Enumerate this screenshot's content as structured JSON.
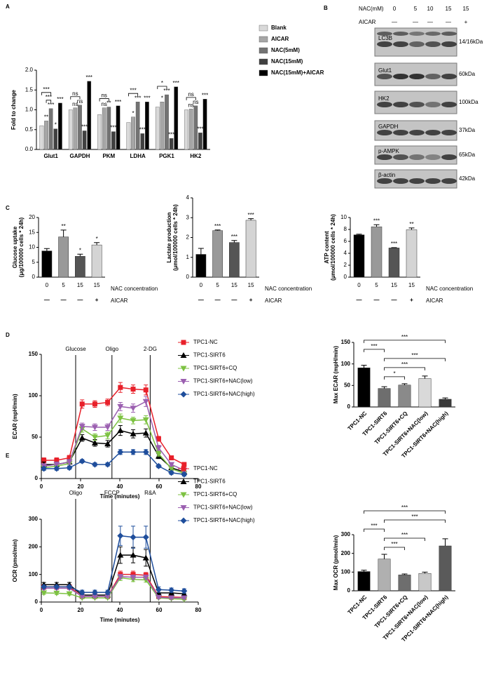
{
  "blot": {
    "panel": "B",
    "header": [
      {
        "label": "NAC(mM)",
        "values": [
          "0",
          "5",
          "10",
          "15",
          "15"
        ]
      },
      {
        "label": "AICAR",
        "values": [
          "—",
          "—",
          "—",
          "—",
          "+"
        ]
      }
    ],
    "bands": [
      {
        "protein": "LC3B",
        "size": "14/16kDa"
      },
      {
        "protein": "Glut1",
        "size": "60kDa"
      },
      {
        "protein": "HK2",
        "size": "100kDa"
      },
      {
        "protein": "GAPDH",
        "size": "37kDa"
      },
      {
        "protein": "p-AMPK",
        "size": "65kDa"
      },
      {
        "protein": "β-actin",
        "size": "42kDa"
      }
    ]
  },
  "chart_data": [
    {
      "type": "bar",
      "panel": "A",
      "ylabel": "Fold to change",
      "categories": [
        "Glut1",
        "GAPDH",
        "PKM",
        "LDHA",
        "PGK1",
        "HK2"
      ],
      "series": [
        {
          "name": "Blank",
          "color": "#d9d9d9",
          "values": [
            0.6,
            1.0,
            0.88,
            0.68,
            1.07,
            1.0
          ],
          "significance": [
            null,
            null,
            null,
            null,
            null,
            null
          ]
        },
        {
          "name": "AICAR",
          "color": "#a6a6a6",
          "values": [
            0.72,
            1.05,
            1.05,
            0.82,
            1.2,
            1.02
          ],
          "significance": [
            "**",
            "ns",
            "ns",
            "*",
            "*",
            "ns"
          ]
        },
        {
          "name": "NAC(5mM)",
          "color": "#737373",
          "values": [
            1.03,
            1.12,
            1.07,
            1.2,
            1.38,
            1.1
          ],
          "significance": [
            "***",
            "ns",
            "**",
            "***",
            "***",
            "ns"
          ]
        },
        {
          "name": "NAC(15mM)",
          "color": "#404040",
          "values": [
            0.52,
            0.47,
            0.45,
            0.4,
            0.28,
            0.42
          ],
          "significance": [
            "*",
            "***",
            "***",
            "***",
            "***",
            "***"
          ]
        },
        {
          "name": "NAC(15mM)+AICAR",
          "color": "#000000",
          "values": [
            1.17,
            1.72,
            1.1,
            1.2,
            1.58,
            1.27
          ],
          "significance": [
            "***",
            "***",
            "***",
            "***",
            "***",
            "***"
          ]
        }
      ],
      "brackets": [
        {
          "category": "Glut1",
          "between": [
            "AICAR",
            "NAC(5mM)"
          ],
          "label": "***"
        },
        {
          "category": "Glut1",
          "between": [
            "Blank",
            "NAC(5mM)"
          ],
          "label": "***"
        },
        {
          "category": "GAPDH",
          "between": [
            "Blank",
            "NAC(5mM)"
          ],
          "label": "ns"
        },
        {
          "category": "PKM",
          "between": [
            "Blank",
            "NAC(5mM)"
          ],
          "label": "ns"
        },
        {
          "category": "LDHA",
          "between": [
            "Blank",
            "NAC(5mM)"
          ],
          "label": "***"
        },
        {
          "category": "PGK1",
          "between": [
            "Blank",
            "NAC(5mM)"
          ],
          "label": "*"
        },
        {
          "category": "HK2",
          "between": [
            "Blank",
            "NAC(5mM)"
          ],
          "label": "ns"
        }
      ],
      "ylim": [
        0,
        2
      ],
      "yticks": [
        {
          "value": 0,
          "label": "0.0"
        },
        0.5,
        {
          "value": 1,
          "label": "1.0"
        },
        1.5,
        {
          "value": 2,
          "label": "2.0"
        }
      ]
    },
    {
      "type": "bar",
      "panel": "C",
      "ylabel": [
        "Glucose uptake",
        "(μg/100000 cells * 24h)"
      ],
      "category_label": "NAC concentration",
      "group_label": "AICAR",
      "categories": [
        "0",
        "5",
        "15",
        "15"
      ],
      "groups": [
        "—",
        "—",
        "—",
        "+"
      ],
      "values": [
        8.8,
        13.5,
        7,
        10.8
      ],
      "errors": [
        0.8,
        2.3,
        0.7,
        0.8
      ],
      "significance": [
        null,
        "**",
        "*",
        "*"
      ],
      "colors": [
        "#000000",
        "#999999",
        "#555555",
        "#d4d4d4"
      ],
      "ylim": [
        0,
        20
      ],
      "yticks": [
        0,
        5,
        10,
        15,
        20
      ]
    },
    {
      "type": "bar",
      "ylabel": [
        "Lactate production",
        "(μmol/100000 cells * 24h)"
      ],
      "category_label": "NAC concentration",
      "group_label": "AICAR",
      "categories": [
        "0",
        "5",
        "15",
        "15"
      ],
      "groups": [
        "—",
        "—",
        "—",
        "+"
      ],
      "values": [
        1.15,
        2.35,
        1.75,
        2.87
      ],
      "errors": [
        0.3,
        0.03,
        0.1,
        0.08
      ],
      "significance": [
        null,
        "***",
        "***",
        "***"
      ],
      "colors": [
        "#000000",
        "#999999",
        "#555555",
        "#d4d4d4"
      ],
      "ylim": [
        0,
        4
      ],
      "yticks": [
        0,
        1,
        2,
        3,
        4
      ]
    },
    {
      "type": "bar",
      "ylabel": [
        "ATP content",
        "(μmol/100000 cells * 24h)"
      ],
      "category_label": "NAC concentration",
      "group_label": "AICAR",
      "categories": [
        "0",
        "5",
        "15",
        "15"
      ],
      "groups": [
        "—",
        "—",
        "—",
        "+"
      ],
      "values": [
        7.1,
        8.45,
        4.9,
        7.95
      ],
      "errors": [
        0.1,
        0.35,
        0.05,
        0.3
      ],
      "significance": [
        null,
        "***",
        "***",
        "**"
      ],
      "colors": [
        "#000000",
        "#999999",
        "#555555",
        "#d4d4d4"
      ],
      "ylim": [
        0,
        10
      ],
      "yticks": [
        0,
        2,
        4,
        6,
        8,
        10
      ]
    },
    {
      "type": "line",
      "panel": "D",
      "ylabel": "ECAR (mpH/min)",
      "xlabel": "Time (minutes)",
      "x": [
        1.3,
        7.8,
        14.3,
        20.8,
        27.3,
        33.8,
        40.3,
        46.8,
        53.3,
        59.8,
        66.3,
        72.8
      ],
      "events": [
        {
          "x": 17.5,
          "label": "Glucose"
        },
        {
          "x": 36,
          "label": "Oligo"
        },
        {
          "x": 55.5,
          "label": "2-DG"
        }
      ],
      "series": [
        {
          "name": "TPC1-NC",
          "color": "#e8202a",
          "marker": "square",
          "values": [
            22,
            22,
            25,
            90,
            90,
            92,
            110,
            108,
            107,
            48,
            25,
            17
          ],
          "errors": [
            3,
            3,
            3,
            5,
            4,
            4,
            6,
            5,
            6,
            3,
            2,
            2
          ]
        },
        {
          "name": "TPC1-SIRT6",
          "color": "#000000",
          "marker": "triangle",
          "values": [
            17,
            17,
            20,
            49,
            43,
            42,
            58,
            54,
            55,
            27,
            13,
            8
          ],
          "errors": [
            3,
            3,
            3,
            4,
            4,
            4,
            6,
            5,
            5,
            3,
            2,
            2
          ]
        },
        {
          "name": "TPC1-SIRT6+CQ",
          "color": "#7dc242",
          "marker": "triangle-down",
          "values": [
            13,
            15,
            18,
            60,
            50,
            52,
            73,
            70,
            71,
            30,
            12,
            6
          ],
          "errors": [
            3,
            3,
            3,
            4,
            4,
            4,
            5,
            4,
            5,
            3,
            2,
            2
          ]
        },
        {
          "name": "TPC1-SIRT6+NAC(low)",
          "color": "#9b5fb0",
          "marker": "triangle-down",
          "values": [
            15,
            17,
            20,
            63,
            62,
            62,
            87,
            85,
            93,
            37,
            17,
            10
          ],
          "errors": [
            3,
            3,
            3,
            4,
            4,
            4,
            5,
            5,
            6,
            3,
            2,
            2
          ]
        },
        {
          "name": "TPC1-SIRT6+NAC(high)",
          "color": "#1f4e9c",
          "marker": "diamond",
          "values": [
            12,
            12,
            13,
            21,
            17,
            17,
            32,
            32,
            32,
            15,
            7,
            5
          ],
          "errors": [
            2,
            2,
            2,
            2,
            2,
            2,
            3,
            3,
            3,
            2,
            2,
            2
          ]
        }
      ],
      "xlim": [
        0,
        80
      ],
      "xticks": [
        0,
        20,
        40,
        60,
        80
      ],
      "ylim": [
        0,
        150
      ],
      "yticks": [
        0,
        50,
        100,
        150
      ]
    },
    {
      "type": "bar",
      "ylabel": "Max ECAR (mpH/min)",
      "categories": [
        "TPC1-NC",
        "TPC1-SIRT6",
        "TPC1-SIRT6+CQ",
        "TPC1-SIRT6+NAC(low)",
        "TPC1-SIRT6+NAC(high)"
      ],
      "values": [
        91,
        43,
        51,
        66,
        18
      ],
      "errors": [
        6,
        4,
        3,
        6,
        3
      ],
      "colors": [
        "#000000",
        "#6e6e6e",
        "#8a8a8a",
        "#d9d9d9",
        "#3a3a3a"
      ],
      "brackets": [
        {
          "between": [
            "TPC1-SIRT6",
            "TPC1-SIRT6+CQ"
          ],
          "label": "*"
        },
        {
          "between": [
            "TPC1-SIRT6",
            "TPC1-SIRT6+NAC(low)"
          ],
          "label": "***"
        },
        {
          "between": [
            "TPC1-SIRT6",
            "TPC1-SIRT6+NAC(high)"
          ],
          "label": "***"
        },
        {
          "between": [
            "TPC1-NC",
            "TPC1-SIRT6"
          ],
          "label": "***"
        },
        {
          "between": [
            "TPC1-NC",
            "TPC1-SIRT6+NAC(high)"
          ],
          "label": "***"
        }
      ],
      "ylim": [
        0,
        150
      ],
      "yticks": [
        0,
        50,
        100,
        150
      ]
    },
    {
      "type": "line",
      "panel": "E",
      "ylabel": "OCR (pmol/min)",
      "xlabel": "Time (minutes)",
      "x": [
        1.3,
        7.8,
        14.3,
        20.8,
        27.3,
        33.8,
        40.3,
        46.8,
        53.3,
        59.8,
        66.3,
        72.8
      ],
      "events": [
        {
          "x": 17.5,
          "label": "Oligo"
        },
        {
          "x": 36,
          "label": "FCCP"
        },
        {
          "x": 55.5,
          "label": "R&A"
        }
      ],
      "series": [
        {
          "name": "TPC1-NC",
          "color": "#e8202a",
          "marker": "square",
          "values": [
            55,
            55,
            55,
            20,
            20,
            20,
            100,
            100,
            97,
            20,
            18,
            17
          ],
          "errors": [
            5,
            5,
            5,
            3,
            3,
            3,
            12,
            12,
            10,
            3,
            3,
            3
          ]
        },
        {
          "name": "TPC1-SIRT6",
          "color": "#000000",
          "marker": "triangle",
          "values": [
            63,
            63,
            63,
            25,
            25,
            25,
            170,
            170,
            160,
            33,
            33,
            30
          ],
          "errors": [
            8,
            8,
            8,
            5,
            5,
            5,
            30,
            28,
            30,
            8,
            8,
            8
          ]
        },
        {
          "name": "TPC1-SIRT6+CQ",
          "color": "#7dc242",
          "marker": "triangle-down",
          "values": [
            33,
            32,
            30,
            15,
            15,
            15,
            88,
            82,
            80,
            15,
            12,
            10
          ],
          "errors": [
            5,
            5,
            5,
            3,
            3,
            3,
            10,
            8,
            8,
            3,
            3,
            3
          ]
        },
        {
          "name": "TPC1-SIRT6+NAC(low)",
          "color": "#9b5fb0",
          "marker": "triangle-down",
          "values": [
            50,
            50,
            50,
            20,
            20,
            20,
            92,
            90,
            90,
            17,
            15,
            15
          ],
          "errors": [
            5,
            5,
            5,
            3,
            3,
            3,
            8,
            8,
            8,
            3,
            3,
            3
          ]
        },
        {
          "name": "TPC1-SIRT6+NAC(high)",
          "color": "#1f4e9c",
          "marker": "diamond",
          "values": [
            55,
            55,
            55,
            35,
            35,
            35,
            240,
            235,
            235,
            45,
            43,
            40
          ],
          "errors": [
            5,
            5,
            5,
            8,
            8,
            8,
            35,
            40,
            40,
            10,
            8,
            8
          ]
        }
      ],
      "xlim": [
        0,
        80
      ],
      "xticks": [
        0,
        20,
        40,
        60,
        80
      ],
      "ylim": [
        0,
        300
      ],
      "yticks": [
        0,
        100,
        200,
        300
      ]
    },
    {
      "type": "bar",
      "ylabel": "Max OCR (pmol/min)",
      "categories": [
        "TPC1-NC",
        "TPC1-SIRT6",
        "TPC1-SIRT6+CQ",
        "TPC1-SIRT6+NAC(low)",
        "TPC1-SIRT6+NAC(high)"
      ],
      "values": [
        103,
        170,
        85,
        93,
        240
      ],
      "errors": [
        7,
        25,
        5,
        7,
        38
      ],
      "colors": [
        "#000000",
        "#b0b0b0",
        "#6e6e6e",
        "#c8c8c8",
        "#5a5a5a"
      ],
      "brackets": [
        {
          "between": [
            "TPC1-SIRT6",
            "TPC1-SIRT6+CQ"
          ],
          "label": "***"
        },
        {
          "between": [
            "TPC1-SIRT6",
            "TPC1-SIRT6+NAC(low)"
          ],
          "label": "***"
        },
        {
          "between": [
            "TPC1-NC",
            "TPC1-SIRT6"
          ],
          "label": "***"
        },
        {
          "between": [
            "TPC1-SIRT6",
            "TPC1-SIRT6+NAC(high)"
          ],
          "label": "***"
        },
        {
          "between": [
            "TPC1-NC",
            "TPC1-SIRT6+NAC(high)"
          ],
          "label": "***"
        }
      ],
      "ylim": [
        0,
        300
      ],
      "yticks": [
        0,
        100,
        200,
        300
      ]
    }
  ]
}
